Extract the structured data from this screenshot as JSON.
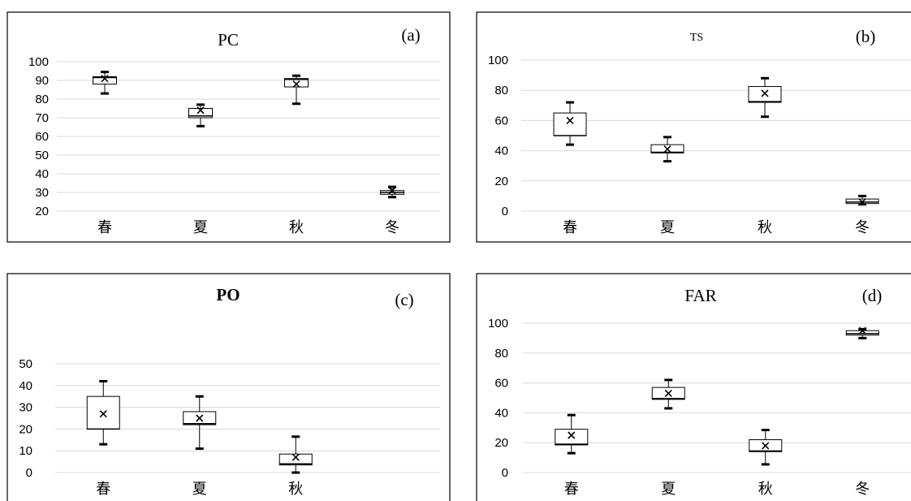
{
  "chart_data": [
    {
      "type": "box",
      "title": "PC",
      "panel_label": "(a)",
      "categories": [
        "春",
        "夏",
        "秋",
        "冬"
      ],
      "ylim": [
        20,
        100
      ],
      "yticks": [
        20,
        30,
        40,
        50,
        60,
        70,
        80,
        90,
        100
      ],
      "grid": true,
      "boxes": [
        {
          "min": 83,
          "q1": 88,
          "median": 91.5,
          "q3": 92,
          "max": 94.5,
          "mean": 91
        },
        {
          "min": 65.5,
          "q1": 70,
          "median": 71,
          "q3": 75,
          "max": 77,
          "mean": 74
        },
        {
          "min": 77.5,
          "q1": 86.5,
          "median": 90.5,
          "q3": 91,
          "max": 92.5,
          "mean": 88
        },
        {
          "min": 27.5,
          "q1": 29,
          "median": 30,
          "q3": 31,
          "max": 33,
          "mean": 31
        }
      ]
    },
    {
      "type": "box",
      "title": "TS",
      "panel_label": "(b)",
      "categories": [
        "春",
        "夏",
        "秋",
        "冬"
      ],
      "ylim": [
        0,
        100
      ],
      "yticks": [
        0,
        20,
        40,
        60,
        80,
        100
      ],
      "grid": true,
      "boxes": [
        {
          "min": 44,
          "q1": 50,
          "median": 50,
          "q3": 65,
          "max": 72,
          "mean": 60
        },
        {
          "min": 33,
          "q1": 38.5,
          "median": 39,
          "q3": 44,
          "max": 49,
          "mean": 41
        },
        {
          "min": 62.5,
          "q1": 72,
          "median": 72.5,
          "q3": 82.5,
          "max": 88,
          "mean": 78
        },
        {
          "min": 4.5,
          "q1": 5,
          "median": 6,
          "q3": 8,
          "max": 10,
          "mean": 6
        }
      ]
    },
    {
      "type": "box",
      "title": "PO",
      "panel_label": "(c)",
      "categories": [
        "春",
        "夏",
        "秋"
      ],
      "ylim": [
        0,
        50
      ],
      "yticks": [
        0,
        10,
        20,
        30,
        40,
        50
      ],
      "grid": true,
      "boxes": [
        {
          "min": 13,
          "q1": 20,
          "median": 20,
          "q3": 35,
          "max": 42,
          "mean": 27
        },
        {
          "min": 11,
          "q1": 22,
          "median": 22.5,
          "q3": 28,
          "max": 35,
          "mean": 25
        },
        {
          "min": 0,
          "q1": 3.5,
          "median": 4,
          "q3": 8.5,
          "max": 16.5,
          "mean": 7
        }
      ]
    },
    {
      "type": "box",
      "title": "FAR",
      "panel_label": "(d)",
      "categories": [
        "春",
        "夏",
        "秋",
        "冬"
      ],
      "ylim": [
        0,
        100
      ],
      "yticks": [
        0,
        20,
        40,
        60,
        80,
        100
      ],
      "grid": true,
      "boxes": [
        {
          "min": 13,
          "q1": 18.5,
          "median": 19,
          "q3": 29,
          "max": 38.5,
          "mean": 25
        },
        {
          "min": 43,
          "q1": 49,
          "median": 49.5,
          "q3": 57,
          "max": 62,
          "mean": 53
        },
        {
          "min": 5.5,
          "q1": 14,
          "median": 14.5,
          "q3": 22,
          "max": 28.5,
          "mean": 18
        },
        {
          "min": 90,
          "q1": 92,
          "median": 93,
          "q3": 95,
          "max": 96,
          "mean": 95
        }
      ]
    }
  ]
}
